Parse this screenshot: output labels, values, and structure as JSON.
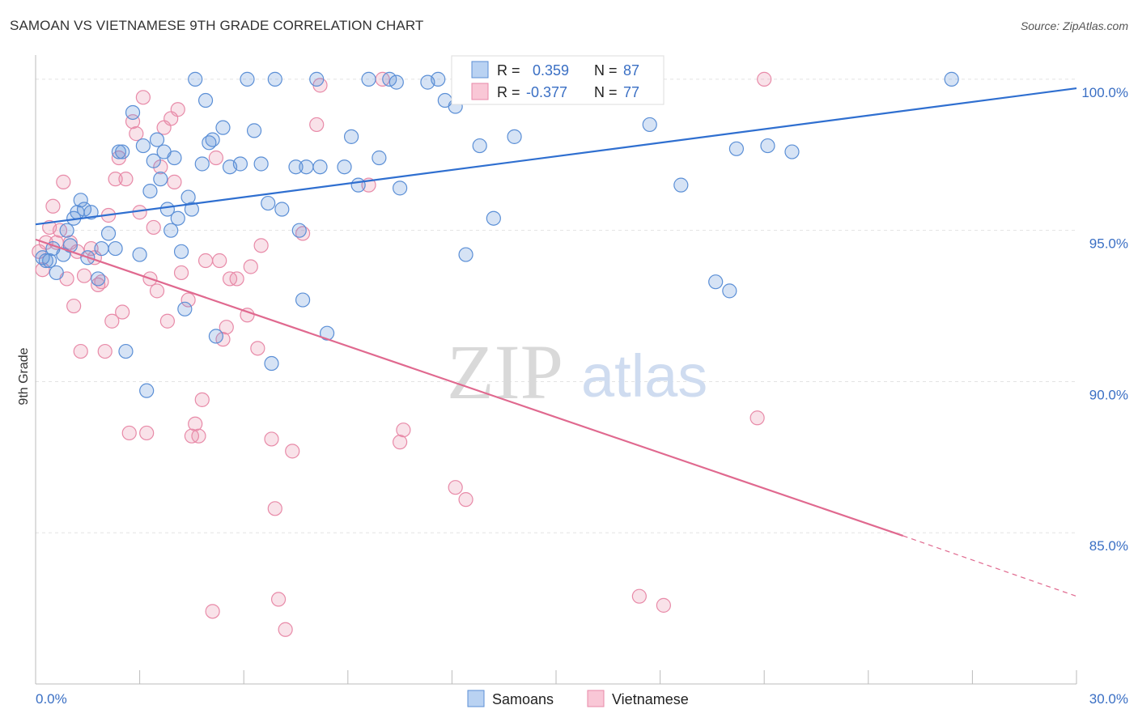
{
  "title": "SAMOAN VS VIETNAMESE 9TH GRADE CORRELATION CHART",
  "source": "Source: ZipAtlas.com",
  "watermark": {
    "zip": "ZIP",
    "atlas": "atlas"
  },
  "colors": {
    "samoans": "#5b8fd6",
    "samoans_fill": "rgba(91,143,214,0.25)",
    "samoans_line": "#2f6fd0",
    "vietnamese": "#e88aa8",
    "vietnamese_fill": "rgba(232,138,168,0.25)",
    "vietnamese_line": "#e0698f",
    "tick_label": "#3a6fc4"
  },
  "legend": {
    "row1": {
      "r_label": "R =",
      "r_value": "0.359",
      "n_label": "N =",
      "n_value": "87"
    },
    "row2": {
      "r_label": "R =",
      "r_value": "-0.377",
      "n_label": "N =",
      "n_value": "77"
    }
  },
  "bottom_legend": [
    "Samoans",
    "Vietnamese"
  ],
  "chart_data": {
    "type": "scatter",
    "title": "SAMOAN VS VIETNAMESE 9TH GRADE CORRELATION CHART",
    "xlabel": "",
    "ylabel": "9th Grade",
    "xlim": [
      0,
      30
    ],
    "ylim": [
      80,
      100.8
    ],
    "x_tick_labels": [
      "0.0%",
      "30.0%"
    ],
    "y_tick_labels": [
      "100.0%",
      "95.0%",
      "90.0%",
      "85.0%"
    ],
    "y_ticks": [
      100,
      95,
      90,
      85
    ],
    "grid": true,
    "legend_position": "top-center",
    "series": [
      {
        "name": "Samoans",
        "R": 0.359,
        "N": 87,
        "trend": {
          "x": [
            0,
            30
          ],
          "y": [
            95.2,
            99.7
          ]
        },
        "points": [
          [
            0.2,
            94.1
          ],
          [
            0.3,
            94.0
          ],
          [
            0.4,
            94.0
          ],
          [
            0.5,
            94.4
          ],
          [
            0.6,
            93.6
          ],
          [
            0.8,
            94.2
          ],
          [
            0.9,
            95.0
          ],
          [
            1.0,
            94.5
          ],
          [
            1.1,
            95.4
          ],
          [
            1.2,
            95.6
          ],
          [
            1.3,
            96.0
          ],
          [
            1.4,
            95.7
          ],
          [
            1.5,
            94.1
          ],
          [
            1.6,
            95.6
          ],
          [
            1.8,
            93.4
          ],
          [
            1.9,
            94.4
          ],
          [
            2.1,
            94.9
          ],
          [
            2.3,
            94.4
          ],
          [
            2.4,
            97.6
          ],
          [
            2.5,
            97.6
          ],
          [
            2.6,
            91.0
          ],
          [
            2.8,
            98.9
          ],
          [
            3.0,
            94.2
          ],
          [
            3.1,
            97.8
          ],
          [
            3.2,
            89.7
          ],
          [
            3.3,
            96.3
          ],
          [
            3.4,
            97.3
          ],
          [
            3.5,
            98.0
          ],
          [
            3.6,
            96.7
          ],
          [
            3.7,
            97.6
          ],
          [
            3.8,
            95.7
          ],
          [
            3.9,
            95.0
          ],
          [
            4.0,
            97.4
          ],
          [
            4.1,
            95.4
          ],
          [
            4.2,
            94.3
          ],
          [
            4.3,
            92.4
          ],
          [
            4.4,
            96.1
          ],
          [
            4.5,
            95.7
          ],
          [
            4.6,
            100.0
          ],
          [
            4.8,
            97.2
          ],
          [
            4.9,
            99.3
          ],
          [
            5.0,
            97.9
          ],
          [
            5.1,
            98.0
          ],
          [
            5.2,
            91.5
          ],
          [
            5.4,
            98.4
          ],
          [
            5.6,
            97.1
          ],
          [
            5.9,
            97.2
          ],
          [
            6.1,
            100.0
          ],
          [
            6.3,
            98.3
          ],
          [
            6.5,
            97.2
          ],
          [
            6.7,
            95.9
          ],
          [
            6.8,
            90.6
          ],
          [
            6.9,
            100.0
          ],
          [
            7.1,
            95.7
          ],
          [
            7.5,
            97.1
          ],
          [
            7.6,
            95.0
          ],
          [
            7.7,
            92.7
          ],
          [
            7.8,
            97.1
          ],
          [
            8.1,
            100.0
          ],
          [
            8.2,
            97.1
          ],
          [
            8.4,
            91.6
          ],
          [
            8.9,
            97.1
          ],
          [
            9.1,
            98.1
          ],
          [
            9.3,
            96.5
          ],
          [
            9.6,
            100.0
          ],
          [
            9.9,
            97.4
          ],
          [
            10.2,
            100.0
          ],
          [
            10.4,
            99.9
          ],
          [
            10.5,
            96.4
          ],
          [
            11.3,
            99.9
          ],
          [
            11.6,
            100.0
          ],
          [
            11.8,
            99.3
          ],
          [
            12.1,
            99.1
          ],
          [
            12.4,
            94.2
          ],
          [
            12.8,
            97.8
          ],
          [
            13.2,
            95.4
          ],
          [
            13.8,
            98.1
          ],
          [
            14.0,
            100.0
          ],
          [
            15.6,
            100.0
          ],
          [
            17.7,
            98.5
          ],
          [
            18.6,
            96.5
          ],
          [
            19.6,
            93.3
          ],
          [
            20.0,
            93.0
          ],
          [
            20.2,
            97.7
          ],
          [
            21.1,
            97.8
          ],
          [
            21.8,
            97.6
          ],
          [
            26.4,
            100.0
          ]
        ]
      },
      {
        "name": "Vietnamese",
        "R": -0.377,
        "N": 77,
        "trend": {
          "x": [
            0,
            25
          ],
          "y": [
            94.7,
            84.9
          ]
        },
        "trend_dashed": {
          "x": [
            25,
            30
          ],
          "y": [
            84.9,
            82.9
          ]
        },
        "points": [
          [
            0.1,
            94.3
          ],
          [
            0.2,
            93.7
          ],
          [
            0.3,
            94.6
          ],
          [
            0.4,
            95.1
          ],
          [
            0.5,
            95.8
          ],
          [
            0.6,
            94.6
          ],
          [
            0.7,
            95.0
          ],
          [
            0.8,
            96.6
          ],
          [
            0.9,
            93.4
          ],
          [
            1.0,
            94.6
          ],
          [
            1.1,
            92.5
          ],
          [
            1.2,
            94.3
          ],
          [
            1.3,
            91.0
          ],
          [
            1.4,
            93.5
          ],
          [
            1.6,
            94.4
          ],
          [
            1.7,
            94.1
          ],
          [
            1.8,
            93.2
          ],
          [
            1.9,
            93.3
          ],
          [
            2.0,
            91.0
          ],
          [
            2.1,
            95.5
          ],
          [
            2.2,
            92.0
          ],
          [
            2.3,
            96.7
          ],
          [
            2.4,
            97.4
          ],
          [
            2.5,
            92.3
          ],
          [
            2.6,
            96.7
          ],
          [
            2.7,
            88.3
          ],
          [
            2.8,
            98.6
          ],
          [
            2.9,
            98.2
          ],
          [
            3.0,
            95.6
          ],
          [
            3.1,
            99.4
          ],
          [
            3.2,
            88.3
          ],
          [
            3.3,
            93.4
          ],
          [
            3.4,
            95.1
          ],
          [
            3.5,
            93.0
          ],
          [
            3.6,
            97.1
          ],
          [
            3.7,
            98.4
          ],
          [
            3.8,
            92.0
          ],
          [
            3.9,
            98.7
          ],
          [
            4.0,
            96.6
          ],
          [
            4.1,
            99.0
          ],
          [
            4.2,
            93.6
          ],
          [
            4.4,
            92.7
          ],
          [
            4.5,
            88.2
          ],
          [
            4.6,
            88.6
          ],
          [
            4.7,
            88.2
          ],
          [
            4.8,
            89.4
          ],
          [
            4.9,
            94.0
          ],
          [
            5.1,
            82.4
          ],
          [
            5.2,
            97.4
          ],
          [
            5.3,
            94.0
          ],
          [
            5.4,
            91.4
          ],
          [
            5.5,
            91.8
          ],
          [
            5.6,
            93.4
          ],
          [
            5.8,
            93.4
          ],
          [
            6.1,
            92.2
          ],
          [
            6.2,
            93.8
          ],
          [
            6.4,
            91.1
          ],
          [
            6.5,
            94.5
          ],
          [
            6.8,
            88.1
          ],
          [
            6.9,
            85.8
          ],
          [
            7.0,
            82.8
          ],
          [
            7.2,
            81.8
          ],
          [
            7.4,
            87.7
          ],
          [
            7.7,
            94.9
          ],
          [
            8.1,
            98.5
          ],
          [
            8.2,
            99.8
          ],
          [
            9.6,
            96.5
          ],
          [
            10.0,
            100.0
          ],
          [
            10.5,
            88.0
          ],
          [
            10.6,
            88.4
          ],
          [
            12.1,
            86.5
          ],
          [
            12.4,
            86.1
          ],
          [
            15.5,
            100.0
          ],
          [
            17.4,
            82.9
          ],
          [
            18.1,
            82.6
          ],
          [
            20.8,
            88.8
          ],
          [
            21.0,
            100.0
          ]
        ]
      }
    ]
  }
}
